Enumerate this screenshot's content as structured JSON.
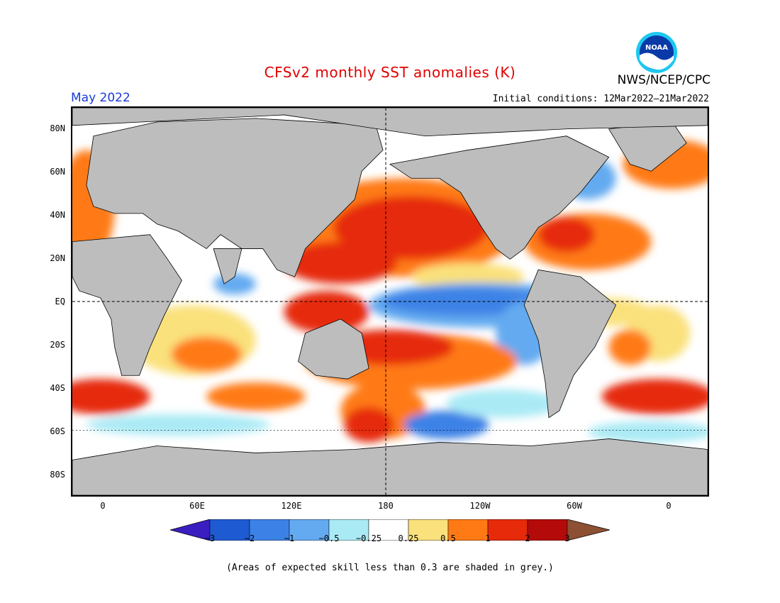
{
  "title": "CFSv2 monthly SST anomalies (K)",
  "month": "May 2022",
  "initial_conditions": "Initial conditions: 12Mar2022–21Mar2022",
  "organization": "NWS/NCEP/CPC",
  "logo": {
    "text": "NOAA",
    "colors": {
      "ring": "#1ec8f0",
      "field": "#0a3aa8",
      "bird": "#ffffff"
    }
  },
  "lat_labels": [
    "80N",
    "60N",
    "40N",
    "20N",
    "EQ",
    "20S",
    "40S",
    "60S",
    "80S"
  ],
  "lon_labels": [
    "0",
    "60E",
    "120E",
    "180",
    "120W",
    "60W",
    "0"
  ],
  "colorbar": {
    "labels": [
      "−3",
      "−2",
      "−1",
      "−0.5",
      "−0.25",
      "0.25",
      "0.5",
      "1",
      "2",
      "3"
    ],
    "colors": [
      "#3a1ec0",
      "#1e5ad2",
      "#3c82e6",
      "#64aaf0",
      "#aaeaf5",
      "#ffffff",
      "#fae17c",
      "#ff7a14",
      "#e62a0a",
      "#b40a0a",
      "#8c5032"
    ]
  },
  "skill_note": "(Areas of expected skill less than 0.3 are shaded in grey.)",
  "map_colors": {
    "land": "#bdbdbd",
    "skill_grey": "#c8c8c8"
  }
}
